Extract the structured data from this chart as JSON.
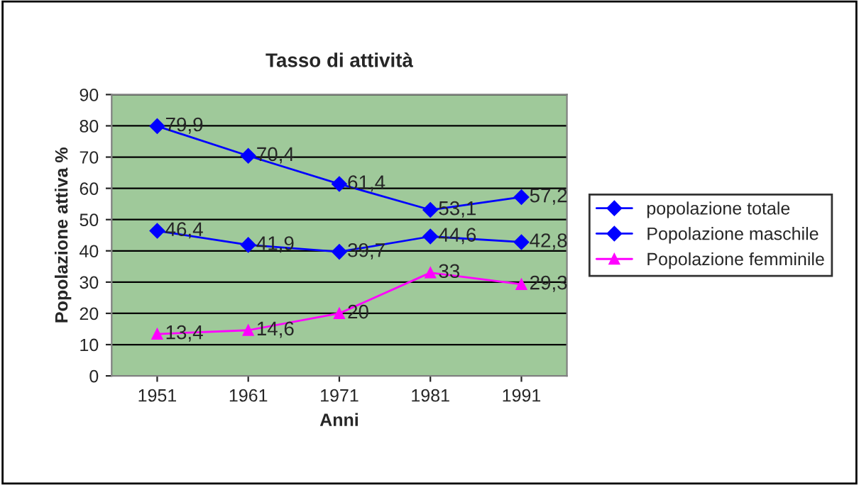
{
  "chart_data": {
    "type": "line",
    "title": "Tasso di attività",
    "xlabel": "Anni",
    "ylabel": "Popolazione attiva %",
    "categories": [
      "1951",
      "1961",
      "1971",
      "1981",
      "1991"
    ],
    "series": [
      {
        "name": "popolazione totale",
        "color": "#0000ff",
        "values": [
          46.4,
          41.9,
          39.7,
          44.6,
          42.8
        ],
        "value_labels": [
          "46,4",
          "41,9",
          "39,7",
          "44,6",
          "42,8"
        ],
        "marker": "diamond"
      },
      {
        "name": "Popolazione maschile",
        "color": "#0000ff",
        "values": [
          79.9,
          70.4,
          61.4,
          53.1,
          57.2
        ],
        "value_labels": [
          "79,9",
          "70,4",
          "61,4",
          "53,1",
          "57,2"
        ],
        "marker": "diamond"
      },
      {
        "name": "Popolazione femminile",
        "color": "#ff00ff",
        "values": [
          13.4,
          14.6,
          20,
          33,
          29.3
        ],
        "value_labels": [
          "13,4",
          "14,6",
          "20",
          "33",
          "29,3"
        ],
        "marker": "triangle"
      }
    ],
    "ylim": [
      0,
      90
    ],
    "yticks": [
      0,
      10,
      20,
      30,
      40,
      50,
      60,
      70,
      80,
      90
    ],
    "grid": "y",
    "legend": "right",
    "line_style": "solid"
  }
}
